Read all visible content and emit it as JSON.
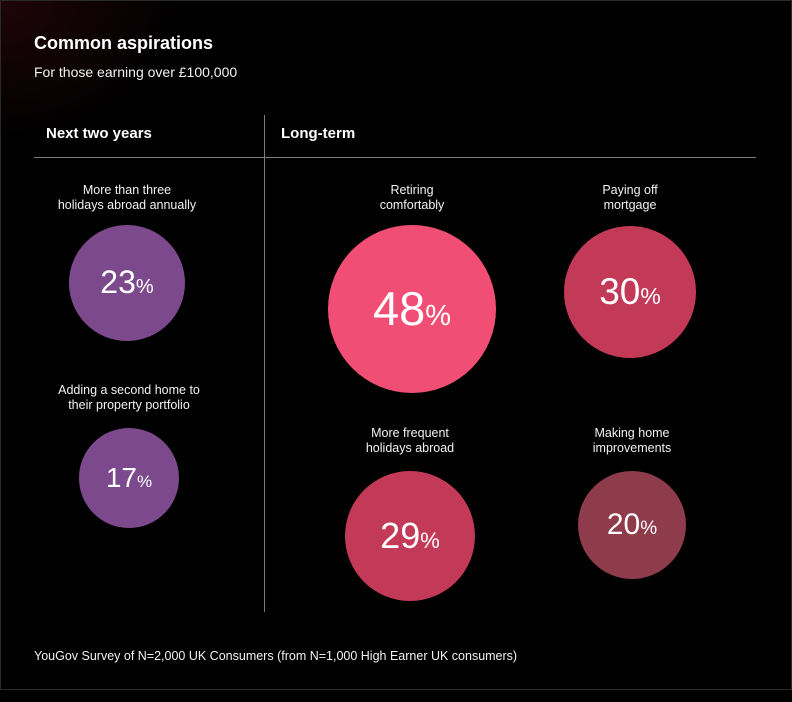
{
  "chart_data": {
    "type": "bubble",
    "title": "Common aspirations",
    "subtitle": "For those earning over £100,000",
    "source": "YouGov Survey of N=2,000 UK Consumers (from N=1,000 High Earner UK consumers)",
    "groups": [
      {
        "name": "Next two years",
        "items": [
          {
            "label_lines": [
              "More than three",
              "holidays abroad annually"
            ],
            "value": 23,
            "color": "#7c4a8c"
          },
          {
            "label_lines": [
              "Adding a second home to",
              "their property portfolio"
            ],
            "value": 17,
            "color": "#7c4a8c"
          }
        ]
      },
      {
        "name": "Long-term",
        "items": [
          {
            "label_lines": [
              "Retiring",
              "comfortably"
            ],
            "value": 48,
            "color": "#f04e74"
          },
          {
            "label_lines": [
              "Paying off",
              "mortgage"
            ],
            "value": 30,
            "color": "#c33a58"
          },
          {
            "label_lines": [
              "More frequent",
              "holidays abroad"
            ],
            "value": 29,
            "color": "#c33a58"
          },
          {
            "label_lines": [
              "Making home",
              "improvements"
            ],
            "value": 20,
            "color": "#8e3b4c"
          }
        ]
      }
    ],
    "unit": "%"
  }
}
